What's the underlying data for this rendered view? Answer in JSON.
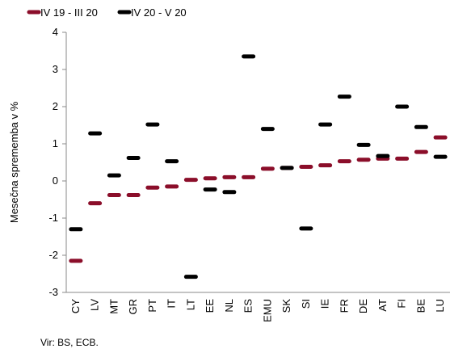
{
  "chart_data": {
    "type": "dash",
    "ylabel": "Mesečna sprememba v %",
    "source": "Vir: BS, ECB.",
    "categories": [
      "CY",
      "LV",
      "MT",
      "GR",
      "PT",
      "IT",
      "LT",
      "EE",
      "NL",
      "ES",
      "EMU",
      "SK",
      "SI",
      "IE",
      "FR",
      "DE",
      "AT",
      "FI",
      "BE",
      "LU"
    ],
    "series": [
      {
        "name": "IV 19 - III 20",
        "color": "#8b0e2a",
        "values": [
          -2.15,
          -0.6,
          -0.38,
          -0.38,
          -0.18,
          -0.15,
          0.03,
          0.07,
          0.1,
          0.1,
          0.33,
          0.35,
          0.38,
          0.42,
          0.53,
          0.57,
          0.6,
          0.6,
          0.78,
          1.17
        ]
      },
      {
        "name": "IV 20 - V 20",
        "color": "#000000",
        "values": [
          -1.3,
          1.28,
          0.15,
          0.62,
          1.52,
          0.53,
          -2.58,
          -0.23,
          -0.3,
          3.35,
          1.4,
          0.35,
          -1.28,
          1.52,
          2.27,
          0.97,
          0.67,
          2.0,
          1.45,
          0.65
        ]
      }
    ],
    "ylim": [
      -3,
      4
    ],
    "yticks": [
      -3,
      -2,
      -1,
      0,
      1,
      2,
      3,
      4
    ],
    "legend": "top-left"
  }
}
